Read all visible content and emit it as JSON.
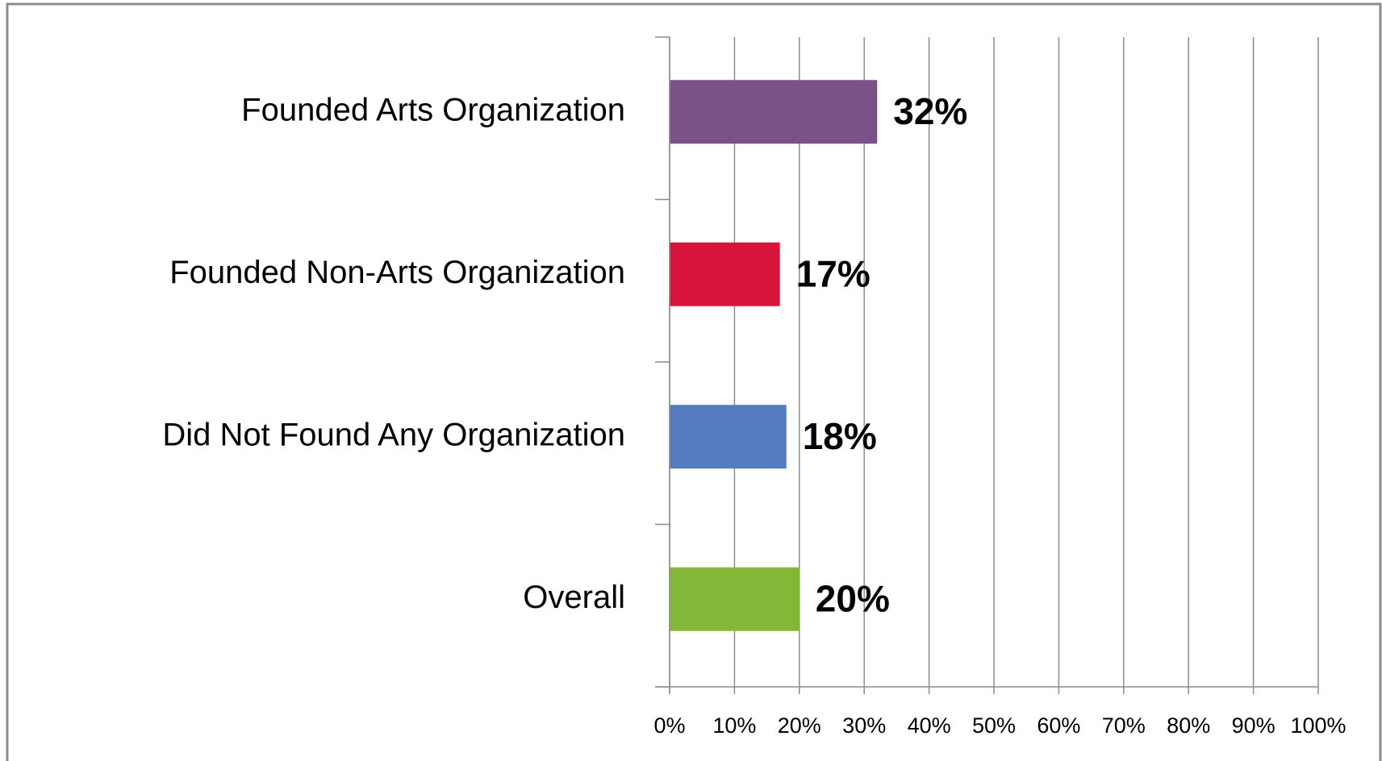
{
  "chart_data": {
    "type": "barh",
    "categories": [
      "Founded Arts Organization",
      "Founded Non-Arts Organization",
      "Did Not Found Any Organization",
      "Overall"
    ],
    "values": [
      32,
      17,
      18,
      20
    ],
    "value_labels": [
      "32%",
      "17%",
      "18%",
      "20%"
    ],
    "colors": [
      "#7b5288",
      "#d7153a",
      "#547bbe",
      "#84b737"
    ],
    "xlim": [
      0,
      100
    ],
    "xticks": [
      {
        "value": 0,
        "label": "0%"
      },
      {
        "value": 10,
        "label": "10%"
      },
      {
        "value": 20,
        "label": "20%"
      },
      {
        "value": 30,
        "label": "30%"
      },
      {
        "value": 40,
        "label": "40%"
      },
      {
        "value": 50,
        "label": "50%"
      },
      {
        "value": 60,
        "label": "60%"
      },
      {
        "value": 70,
        "label": "70%"
      },
      {
        "value": 80,
        "label": "80%"
      },
      {
        "value": 90,
        "label": "90%"
      },
      {
        "value": 100,
        "label": "100%"
      }
    ],
    "grid": true
  }
}
